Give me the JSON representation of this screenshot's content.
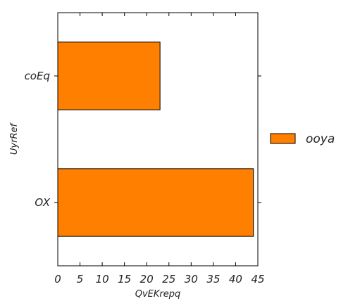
{
  "chart_data": {
    "type": "bar",
    "orientation": "horizontal",
    "categories": [
      "OX",
      "coEq"
    ],
    "series": [
      {
        "name": "ooya",
        "values": [
          44,
          23
        ],
        "color": "#ff7f00"
      }
    ],
    "title": "",
    "xlabel": "QvEKrepq",
    "ylabel": "UyrRef",
    "xlim": [
      0,
      45
    ],
    "xticks": [
      0,
      5,
      10,
      15,
      20,
      25,
      30,
      35,
      40,
      45
    ],
    "grid": false,
    "legend_position": "right",
    "bar_edge_color": "#000000"
  }
}
